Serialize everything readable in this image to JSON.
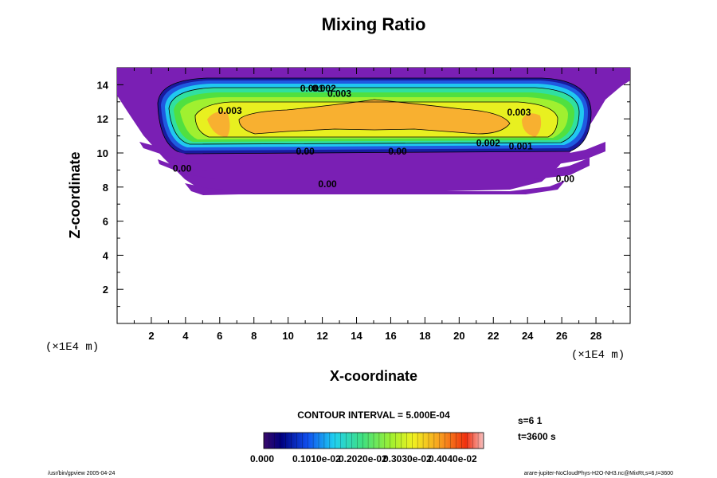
{
  "chart_data": {
    "type": "contour",
    "title": "Mixing Ratio",
    "xlabel": "X-coordinate",
    "ylabel": "Z-coordinate",
    "x_unit": "(×1E4 m)",
    "y_unit": "(×1E4 m)",
    "xlim": [
      0,
      30
    ],
    "ylim": [
      0,
      15
    ],
    "x_ticks": [
      "2",
      "4",
      "6",
      "8",
      "10",
      "12",
      "14",
      "16",
      "18",
      "20",
      "22",
      "24",
      "26",
      "28"
    ],
    "y_ticks": [
      "2",
      "4",
      "6",
      "8",
      "10",
      "12",
      "14"
    ],
    "contour_labels": [
      {
        "text": "0.001",
        "x": 11.4,
        "y": 13.6
      },
      {
        "text": "0.002",
        "x": 12.1,
        "y": 13.6
      },
      {
        "text": "0.003",
        "x": 13.0,
        "y": 13.3
      },
      {
        "text": "0.003",
        "x": 6.6,
        "y": 12.3
      },
      {
        "text": "0.003",
        "x": 23.5,
        "y": 12.2
      },
      {
        "text": "0.002",
        "x": 21.7,
        "y": 10.4
      },
      {
        "text": "0.001",
        "x": 23.6,
        "y": 10.2
      },
      {
        "text": "0.00",
        "x": 11.0,
        "y": 9.9
      },
      {
        "text": "0.00",
        "x": 16.4,
        "y": 9.9
      },
      {
        "text": "0.00",
        "x": 3.8,
        "y": 8.9
      },
      {
        "text": "0.00",
        "x": 12.3,
        "y": 8.0
      },
      {
        "text": "0.00",
        "x": 26.2,
        "y": 8.3
      }
    ],
    "contour_interval": "CONTOUR INTERVAL = 5.000E-04",
    "colorbar": {
      "min": 0.0,
      "max": 0.004,
      "tick_labels": [
        "0.000",
        "0.1010e-02",
        "0.2020e-02",
        "0.3030e-02",
        "0.4040e-02"
      ]
    },
    "grid": false,
    "legend": "colorbar-bottom"
  },
  "info": {
    "step": "s=6 1",
    "time": "t=3600 s"
  },
  "footer": {
    "left": "/usr/bin/gpview 2005-04-24",
    "right": "arare-jupiter-NoCloudPhys-H2O-NH3.nc@MixRt,s=6,t=3600"
  },
  "colors": {
    "purple": "#7a1fb4",
    "blue": "#1030c0",
    "cyan": "#20c0f0",
    "green": "#30d040",
    "yellow": "#f0e020",
    "orange": "#f8a020"
  }
}
